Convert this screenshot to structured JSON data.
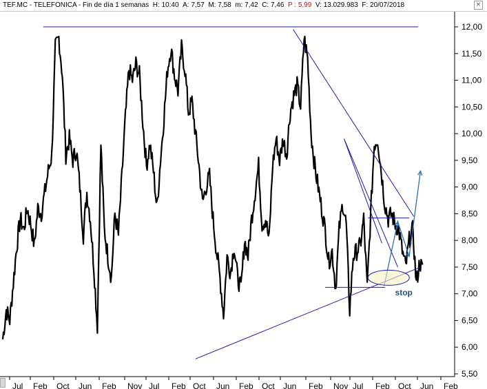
{
  "header": {
    "ticker": "TEF.MC",
    "name": "TELEFONICA",
    "period": "Fin de día 1 semanas",
    "time_label": "H:",
    "time": "10:40",
    "open_label": "A:",
    "open": "7,57",
    "high_label": "M:",
    "high": "7,58",
    "low_label": "m:",
    "low": "7,42",
    "close_label": "C:",
    "close": "7,46",
    "p_label": "P :",
    "p": "5,99",
    "vol_label": "V:",
    "vol": "13.029.983",
    "date_label": "F:",
    "date": "20/07/2018",
    "close_icon": "close-icon"
  },
  "chart_data": {
    "type": "line",
    "y_ticks": [
      "12,00",
      "11,50",
      "11,00",
      "10,50",
      "10,00",
      "9,50",
      "9,00",
      "8,50",
      "8,00",
      "7,50",
      "7,00",
      "6,50",
      "6,00",
      "5,50"
    ],
    "x_ticks": [
      "Jul",
      "Feb",
      "Oct",
      "Jun",
      "Feb",
      "Nov",
      "Jul",
      "Feb",
      "Oct",
      "Jun",
      "Feb",
      "Oct",
      "Jun",
      "Feb",
      "Nov",
      "Jul",
      "Feb",
      "Oct",
      "Jun",
      "Feb"
    ],
    "ylim": [
      5.5,
      12.2
    ],
    "grid": false,
    "series": [
      {
        "values": [
          6.15,
          6.7,
          6.5,
          7.2,
          7.9,
          8.4,
          8.2,
          8.6,
          8.3,
          7.9,
          8.6,
          8.5,
          8.9,
          9.3,
          9.6,
          11.6,
          11.8,
          11.1,
          9.6,
          9.9,
          9.5,
          9.7,
          9.0,
          8.1,
          8.9,
          8.4,
          7.5,
          6.4,
          9.8,
          8.2,
          7.7,
          7.3,
          8.5,
          8.1,
          9.2,
          10.3,
          11.2,
          11.0,
          11.3,
          11.1,
          10.2,
          9.4,
          9.8,
          9.3,
          8.6,
          9.5,
          10.3,
          11.2,
          11.6,
          11.1,
          10.8,
          11.6,
          11.2,
          10.4,
          10.6,
          10.0,
          9.4,
          8.7,
          9.0,
          9.2,
          8.4,
          7.8,
          7.3,
          6.6,
          7.7,
          7.4,
          7.9,
          7.3,
          7.1,
          8.0,
          7.7,
          8.4,
          8.9,
          9.4,
          8.3,
          8.4,
          8.0,
          9.4,
          9.9,
          9.5,
          9.9,
          9.6,
          10.4,
          10.7,
          10.9,
          10.5,
          11.8,
          11.4,
          10.0,
          9.4,
          9.0,
          8.6,
          8.2,
          7.6,
          7.8,
          7.1,
          8.2,
          8.7,
          8.3,
          6.7,
          7.7,
          7.8,
          7.9,
          8.4,
          7.1,
          8.5,
          9.8,
          9.9,
          9.3,
          8.7,
          8.4,
          8.5,
          8.3,
          8.2,
          7.8,
          7.5,
          8.0,
          8.2,
          7.2,
          7.6,
          7.4
        ]
      }
    ],
    "trend_lines": [
      {
        "from": [
          0.095,
          12.0
        ],
        "to": [
          0.92,
          12.0
        ]
      },
      {
        "from": [
          0.645,
          11.95
        ],
        "to": [
          0.91,
          8.45
        ]
      },
      {
        "from": [
          0.757,
          9.9
        ],
        "to": [
          0.875,
          7.5
        ]
      },
      {
        "from": [
          0.757,
          9.9
        ],
        "to": [
          0.84,
          7.95
        ]
      },
      {
        "from": [
          0.43,
          5.78
        ],
        "to": [
          0.925,
          7.5
        ]
      },
      {
        "from": [
          0.715,
          7.12
        ],
        "to": [
          0.847,
          7.12
        ]
      },
      {
        "from": [
          0.81,
          8.42
        ],
        "to": [
          0.9,
          8.42
        ]
      }
    ],
    "projection": [
      [
        0.845,
        7.15
      ],
      [
        0.875,
        8.35
      ],
      [
        0.9,
        7.7
      ],
      [
        0.925,
        9.3
      ]
    ],
    "annotations": [
      {
        "text": "stop",
        "x": 0.869,
        "y": 7.02
      }
    ]
  }
}
